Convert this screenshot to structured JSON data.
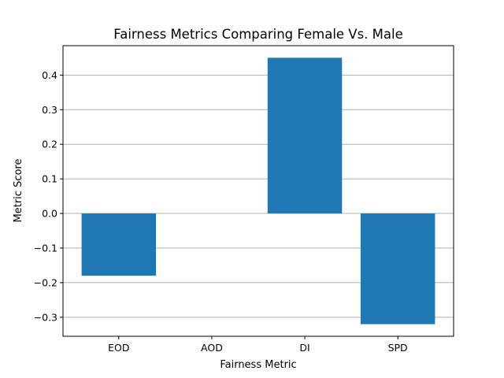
{
  "chart_data": {
    "type": "bar",
    "title": "Fairness Metrics Comparing Female Vs. Male",
    "xlabel": "Fairness Metric",
    "ylabel": "Metric Score",
    "categories": [
      "EOD",
      "AOD",
      "DI",
      "SPD"
    ],
    "values": [
      -0.18,
      0.0,
      0.45,
      -0.32
    ],
    "ylim": [
      -0.355,
      0.485
    ],
    "yticks": [
      -0.3,
      -0.2,
      -0.1,
      0.0,
      0.1,
      0.2,
      0.3,
      0.4
    ],
    "ytick_labels": [
      "−0.3",
      "−0.2",
      "−0.1",
      "0.0",
      "0.1",
      "0.2",
      "0.3",
      "0.4"
    ],
    "grid": "y",
    "bar_color": "#1f77b4",
    "grid_color": "#b0b0b0"
  }
}
